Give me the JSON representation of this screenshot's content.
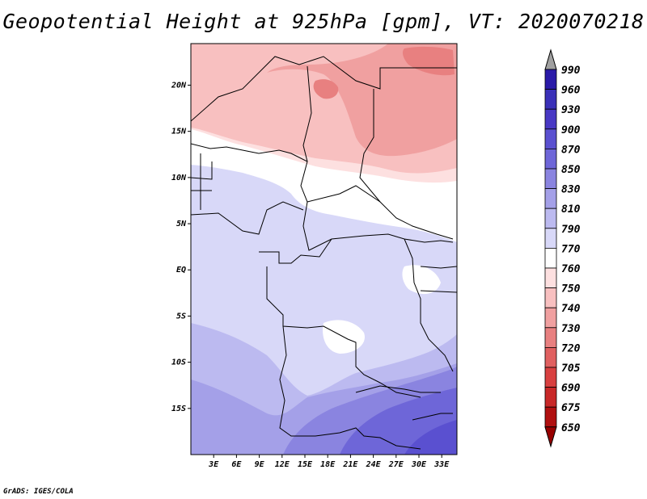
{
  "title": "Geopotential Height at 925hPa [gpm], VT: 2020070218",
  "credit": "GrADS: IGES/COLA",
  "map": {
    "lon_range": [
      0,
      35
    ],
    "lat_range": [
      -20,
      24.5
    ],
    "x_ticks": [
      "3E",
      "6E",
      "9E",
      "12E",
      "15E",
      "18E",
      "21E",
      "24E",
      "27E",
      "30E",
      "33E"
    ],
    "y_ticks": [
      "20N",
      "15N",
      "10N",
      "5N",
      "EQ",
      "5S",
      "10S",
      "15S"
    ]
  },
  "colorbar": {
    "labels": [
      "990",
      "960",
      "930",
      "900",
      "870",
      "850",
      "830",
      "810",
      "790",
      "770",
      "760",
      "750",
      "740",
      "730",
      "720",
      "705",
      "690",
      "675",
      "650"
    ],
    "colors": [
      "#180090",
      "#2a1aa8",
      "#3a30b8",
      "#4838c4",
      "#5a50d0",
      "#6e66d8",
      "#8a84e0",
      "#a4a0e8",
      "#bcbaf0",
      "#d8d8f8",
      "#ffffff",
      "#fde0e0",
      "#f8c0c0",
      "#f0a0a0",
      "#e88080",
      "#e06060",
      "#d84040",
      "#c82828",
      "#b01010",
      "#980000"
    ]
  },
  "legend_colors": {
    "land_border": "#000000",
    "contour_low": "#6e66d8",
    "contour_high": "#f0a0a0"
  }
}
